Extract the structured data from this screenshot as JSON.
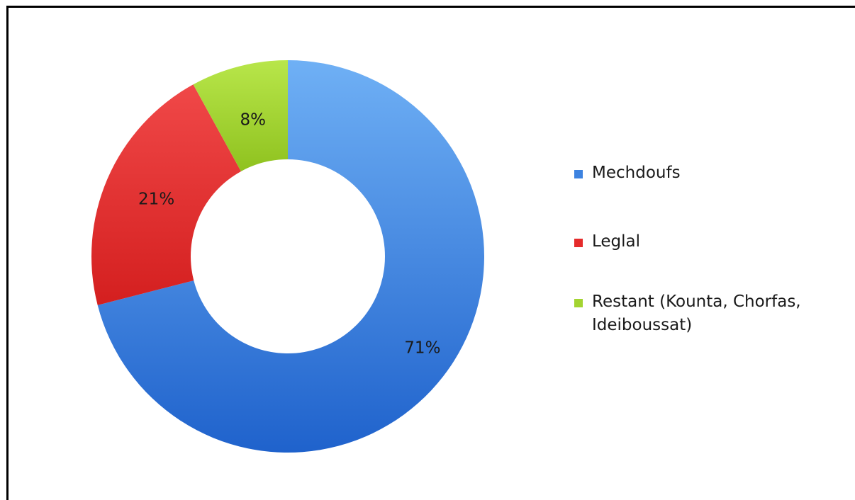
{
  "chart_data": {
    "type": "pie",
    "variant": "donut",
    "slices": [
      {
        "label": "Mechdoufs",
        "value": 71,
        "display": "71%",
        "color": "#3d83e0"
      },
      {
        "label": "Leglal",
        "value": 21,
        "display": "21%",
        "color": "#e52b2b"
      },
      {
        "label": "Restant (Kounta, Chorfas, Ideiboussat)",
        "value": 8,
        "display": "8%",
        "color": "#a3d431"
      }
    ],
    "legend_position": "right",
    "start_angle": "top",
    "direction": "clockwise"
  }
}
